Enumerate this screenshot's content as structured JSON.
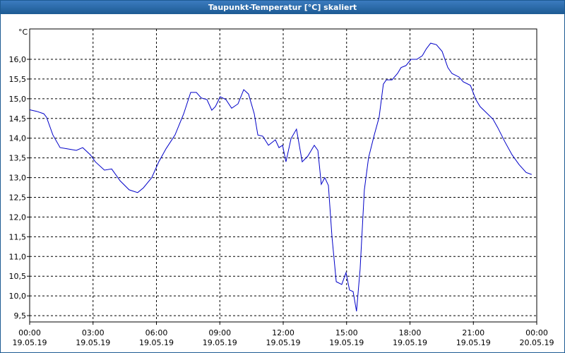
{
  "chart_data": {
    "type": "line",
    "title": "Taupunkt-Temperatur [°C] skaliert",
    "y_label": "°C",
    "xlim": [
      0,
      24
    ],
    "xticks": [
      {
        "value": 0,
        "label": "00:00 19.05.19"
      },
      {
        "value": 3,
        "label": "03:00 19.05.19"
      },
      {
        "value": 6,
        "label": "06:00 19.05.19"
      },
      {
        "value": 9,
        "label": "09:00 19.05.19"
      },
      {
        "value": 12,
        "label": "12:00 19.05.19"
      },
      {
        "value": 15,
        "label": "15:00 19.05.19"
      },
      {
        "value": 18,
        "label": "18:00 19.05.19"
      },
      {
        "value": 21,
        "label": "21:00 19.05.19"
      },
      {
        "value": 24,
        "label": "00:00 20.05.19"
      }
    ],
    "ylim": [
      9.34,
      16.77
    ],
    "yticks": [
      {
        "value": 9.5,
        "label": "9,5"
      },
      {
        "value": 10,
        "label": "10,0"
      },
      {
        "value": 10.5,
        "label": "10,5"
      },
      {
        "value": 11,
        "label": "11,0"
      },
      {
        "value": 11.5,
        "label": "11,5"
      },
      {
        "value": 12,
        "label": "12,0"
      },
      {
        "value": 12.5,
        "label": "12,5"
      },
      {
        "value": 13,
        "label": "13,0"
      },
      {
        "value": 13.5,
        "label": "13,5"
      },
      {
        "value": 14,
        "label": "14,0"
      },
      {
        "value": 14.5,
        "label": "14,5"
      },
      {
        "value": 15,
        "label": "15,0"
      },
      {
        "value": 15.5,
        "label": "15,5"
      },
      {
        "value": 16,
        "label": "16,0"
      }
    ],
    "grid": true,
    "x": [
      0,
      0.33,
      0.67,
      0.8,
      1.1,
      1.44,
      1.77,
      2.21,
      2.51,
      2.87,
      3.11,
      3.54,
      3.88,
      4.28,
      4.71,
      5.11,
      5.38,
      5.78,
      6.11,
      6.45,
      6.88,
      7.29,
      7.62,
      7.89,
      8.12,
      8.39,
      8.62,
      8.79,
      9.02,
      9.29,
      9.56,
      9.86,
      10.13,
      10.36,
      10.63,
      10.8,
      11.03,
      11.3,
      11.63,
      11.8,
      11.97,
      12.13,
      12.37,
      12.63,
      12.9,
      13.17,
      13.47,
      13.64,
      13.8,
      13.97,
      14.14,
      14.31,
      14.51,
      14.77,
      14.97,
      15.14,
      15.31,
      15.47,
      15.64,
      15.84,
      16.04,
      16.31,
      16.54,
      16.74,
      16.88,
      17.15,
      17.41,
      17.58,
      17.81,
      18.05,
      18.32,
      18.58,
      18.78,
      18.98,
      19.25,
      19.52,
      19.79,
      19.99,
      20.32,
      20.52,
      20.86,
      21.12,
      21.32,
      21.59,
      21.93,
      22.16,
      22.49,
      22.83,
      23.16,
      23.5,
      23.76
    ],
    "series": [
      {
        "color": "#0000c8",
        "values": [
          14.72,
          14.68,
          14.62,
          14.53,
          14.08,
          13.76,
          13.73,
          13.69,
          13.76,
          13.58,
          13.4,
          13.19,
          13.22,
          12.92,
          12.69,
          12.62,
          12.74,
          13.0,
          13.4,
          13.73,
          14.08,
          14.62,
          15.16,
          15.16,
          15.02,
          14.98,
          14.71,
          14.8,
          15.05,
          14.98,
          14.76,
          14.87,
          15.23,
          15.12,
          14.62,
          14.08,
          14.05,
          13.82,
          13.96,
          13.76,
          13.82,
          13.4,
          13.99,
          14.23,
          13.4,
          13.55,
          13.82,
          13.69,
          12.83,
          13.0,
          12.8,
          11.49,
          10.36,
          10.29,
          10.59,
          10.15,
          10.11,
          9.61,
          10.68,
          12.69,
          13.51,
          14.08,
          14.53,
          15.37,
          15.48,
          15.48,
          15.64,
          15.79,
          15.84,
          16.0,
          16.0,
          16.09,
          16.27,
          16.41,
          16.37,
          16.2,
          15.79,
          15.64,
          15.55,
          15.43,
          15.34,
          14.98,
          14.8,
          14.66,
          14.48,
          14.26,
          13.91,
          13.58,
          13.33,
          13.13,
          13.08
        ]
      }
    ]
  }
}
